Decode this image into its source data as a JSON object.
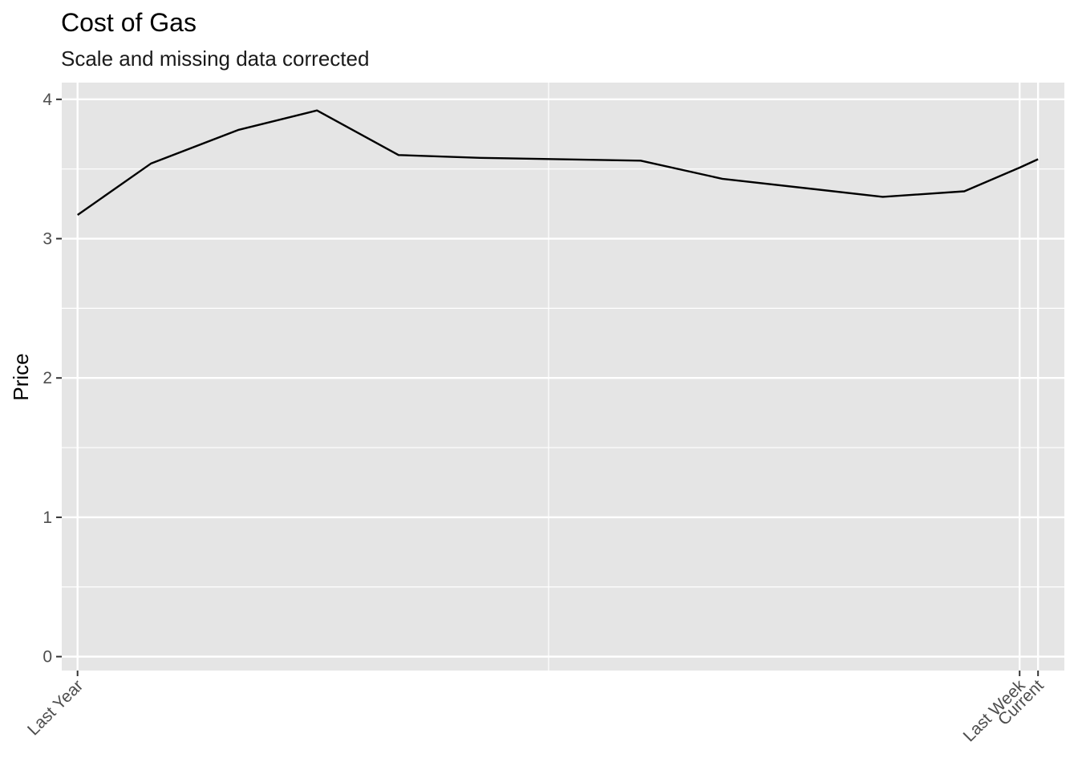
{
  "chart_data": {
    "type": "line",
    "title": "Cost of Gas",
    "subtitle": "Scale and missing data corrected",
    "xlabel": "",
    "ylabel": "Price",
    "x_axis": {
      "unit": "days",
      "range": [
        -371,
        10
      ],
      "ticks": [
        {
          "x": -365,
          "label": "Last Year"
        },
        {
          "x": -7,
          "label": "Last Week"
        },
        {
          "x": 0,
          "label": "Current"
        }
      ],
      "minor_grid": [
        -186
      ]
    },
    "y_axis": {
      "range": [
        -0.1,
        4.12
      ],
      "ticks": [
        0,
        1,
        2,
        3,
        4
      ],
      "minor_grid": [
        0.5,
        1.5,
        2.5,
        3.5
      ]
    },
    "series": [
      {
        "color": "#000000",
        "points": [
          {
            "x": -365,
            "y": 3.17
          },
          {
            "x": -337,
            "y": 3.54
          },
          {
            "x": -304,
            "y": 3.78
          },
          {
            "x": -274,
            "y": 3.92
          },
          {
            "x": -243,
            "y": 3.6
          },
          {
            "x": -212,
            "y": 3.58
          },
          {
            "x": -151,
            "y": 3.56
          },
          {
            "x": -120,
            "y": 3.43
          },
          {
            "x": -59,
            "y": 3.3
          },
          {
            "x": -28,
            "y": 3.34
          },
          {
            "x": -7,
            "y": 3.51
          },
          {
            "x": 0,
            "y": 3.57
          }
        ]
      }
    ],
    "grid": true,
    "panel_color": "#E5E5E5",
    "grid_color": "#FFFFFF"
  }
}
